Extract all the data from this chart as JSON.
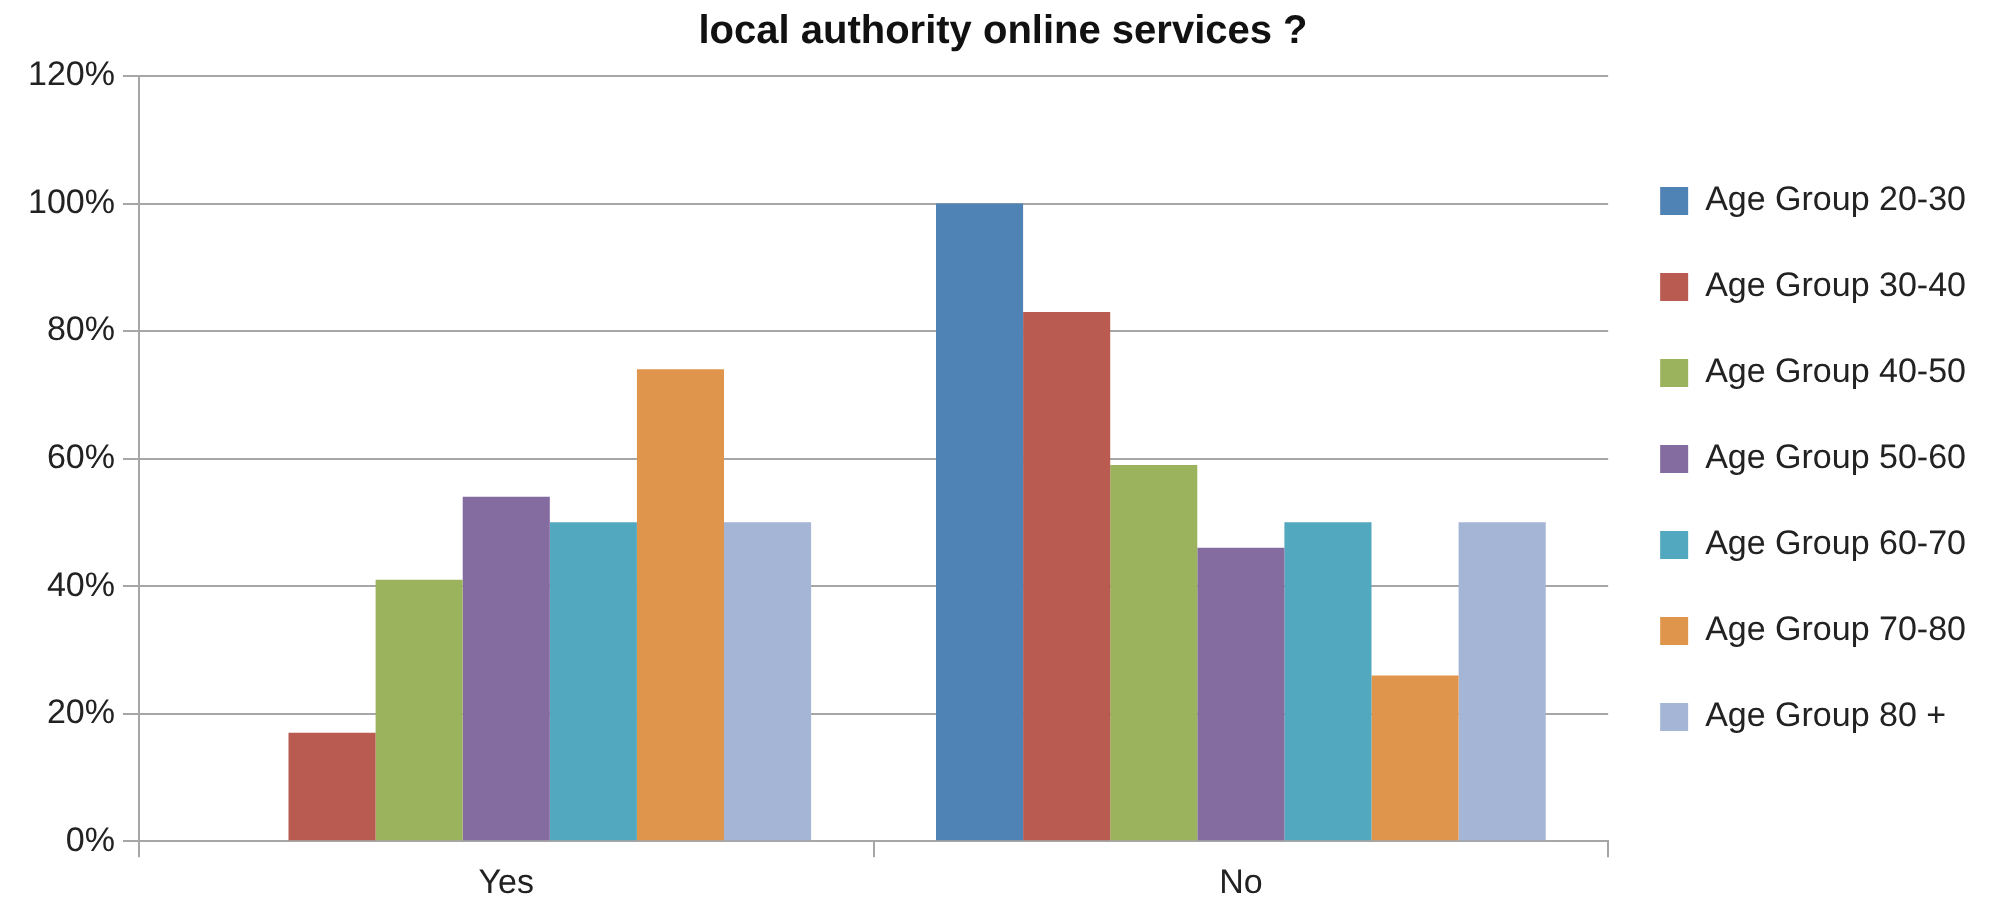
{
  "chart_data": {
    "type": "bar",
    "title": "local authority online services ?",
    "categories": [
      "Yes",
      "No"
    ],
    "series": [
      {
        "name": "Age Group 20-30",
        "color": "#5083b5",
        "values": [
          0,
          100
        ]
      },
      {
        "name": "Age Group 30-40",
        "color": "#b95b50",
        "values": [
          17,
          83
        ]
      },
      {
        "name": "Age Group 40-50",
        "color": "#9bb35d",
        "values": [
          41,
          59
        ]
      },
      {
        "name": "Age Group 50-60",
        "color": "#846ba0",
        "values": [
          54,
          46
        ]
      },
      {
        "name": "Age Group 60-70",
        "color": "#52a8be",
        "values": [
          50,
          50
        ]
      },
      {
        "name": "Age Group 70-80",
        "color": "#e0954d",
        "values": [
          74,
          26
        ]
      },
      {
        "name": "Age Group 80 +",
        "color": "#a4b5d6",
        "values": [
          50,
          50
        ]
      }
    ],
    "ylim": [
      0,
      120
    ],
    "yticks": [
      {
        "value": 0,
        "label": "0%"
      },
      {
        "value": 20,
        "label": "20%"
      },
      {
        "value": 40,
        "label": "40%"
      },
      {
        "value": 60,
        "label": "60%"
      },
      {
        "value": 80,
        "label": "80%"
      },
      {
        "value": 100,
        "label": "100%"
      },
      {
        "value": 120,
        "label": "120%"
      }
    ],
    "grid": "y",
    "legend": "right"
  }
}
